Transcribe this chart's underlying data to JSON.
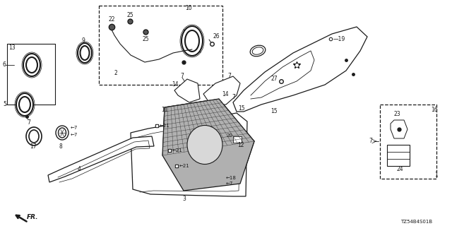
{
  "bg_color": "#ffffff",
  "line_color": "#1a1a1a",
  "diagram_code": "TZ54B4S01B",
  "gray_mesh": "#888888",
  "dark_gray": "#444444"
}
